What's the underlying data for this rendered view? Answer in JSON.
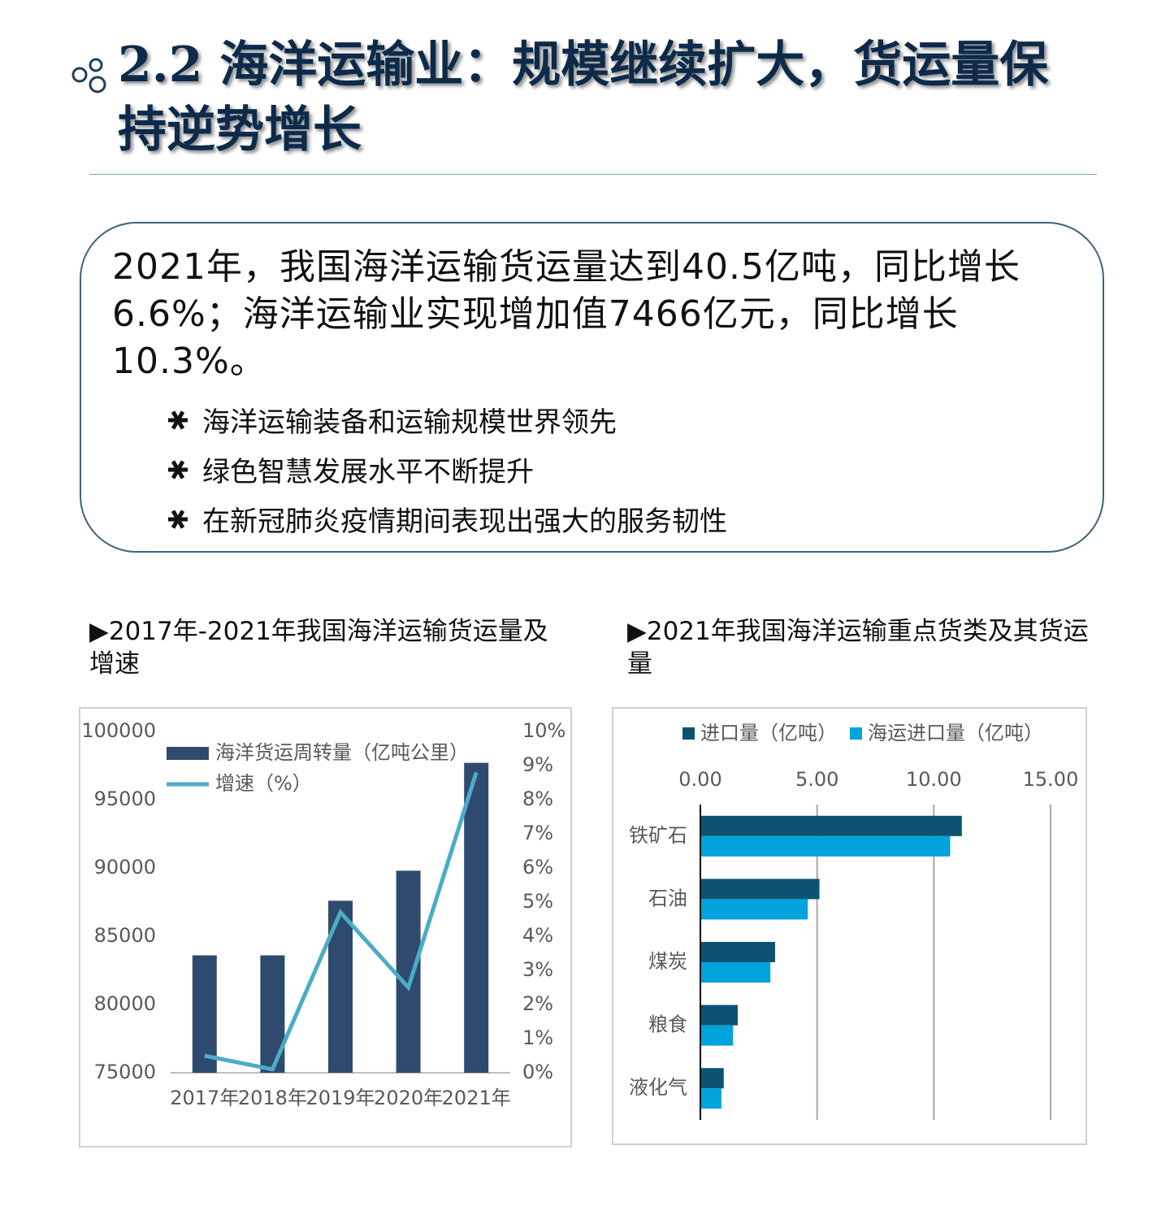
{
  "header": {
    "title": "2.2 海洋运输业：规模继续扩大，货运量保持逆势增长"
  },
  "summary": {
    "text": "2021年，我国海洋运输货运量达到40.5亿吨，同比增长6.6%；海洋运输业实现增加值7466亿元，同比增长10.3%。",
    "bullets": [
      "海洋运输装备和运输规模世界领先",
      "绿色智慧发展水平不断提升",
      "在新冠肺炎疫情期间表现出强大的服务韧性"
    ]
  },
  "chart_data": [
    {
      "type": "combo",
      "title": "▶2017年-2021年我国海洋运输货运量及增速",
      "categories": [
        "2017年",
        "2018年",
        "2019年",
        "2020年",
        "2021年"
      ],
      "series": [
        {
          "name": "海洋货运周转量（亿吨公里）",
          "type": "bar",
          "color": "#2e4a6e",
          "values": [
            83600,
            83600,
            87600,
            89800,
            97700
          ]
        },
        {
          "name": "增速（%）",
          "type": "line",
          "axis": "y2",
          "color": "#4bacc6",
          "values": [
            0.5,
            0.1,
            4.7,
            2.5,
            8.8
          ]
        }
      ],
      "ylim": [
        75000,
        100000
      ],
      "yticks": [
        75000,
        80000,
        85000,
        90000,
        95000,
        100000
      ],
      "y2lim": [
        0,
        10
      ],
      "y2ticks": [
        {
          "value": 0,
          "label": "0%"
        },
        {
          "value": 1,
          "label": "1%"
        },
        {
          "value": 2,
          "label": "2%"
        },
        {
          "value": 3,
          "label": "3%"
        },
        {
          "value": 4,
          "label": "4%"
        },
        {
          "value": 5,
          "label": "5%"
        },
        {
          "value": 6,
          "label": "6%"
        },
        {
          "value": 7,
          "label": "7%"
        },
        {
          "value": 8,
          "label": "8%"
        },
        {
          "value": 9,
          "label": "9%"
        },
        {
          "value": 10,
          "label": "10%"
        }
      ],
      "legend": "top-left",
      "grid": false
    },
    {
      "type": "barh",
      "title": "▶2021年我国海洋运输重点货类及其货运量",
      "categories": [
        "铁矿石",
        "石油",
        "煤炭",
        "粮食",
        "液化气"
      ],
      "series": [
        {
          "name": "进口量（亿吨）",
          "color": "#0b5370",
          "values": [
            11.2,
            5.1,
            3.2,
            1.6,
            1.0
          ]
        },
        {
          "name": "海运进口量（亿吨）",
          "color": "#00a3dc",
          "values": [
            10.7,
            4.6,
            3.0,
            1.4,
            0.9
          ]
        }
      ],
      "xlim": [
        0,
        15
      ],
      "xticks": [
        {
          "value": 0,
          "label": "0.00"
        },
        {
          "value": 5,
          "label": "5.00"
        },
        {
          "value": 10,
          "label": "10.00"
        },
        {
          "value": 15,
          "label": "15.00"
        }
      ],
      "legend": "top",
      "grid": true
    }
  ]
}
